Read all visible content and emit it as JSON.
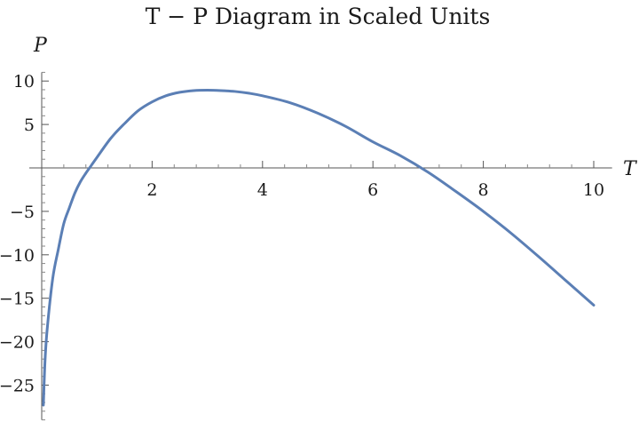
{
  "chart_data": {
    "type": "line",
    "title": "T − P Diagram in Scaled Units",
    "xlabel": "T",
    "ylabel": "P",
    "xlim": [
      0,
      10.3
    ],
    "ylim": [
      -29,
      11
    ],
    "grid": false,
    "x_ticks": [
      2,
      4,
      6,
      8,
      10
    ],
    "x_tick_labels": [
      "2",
      "4",
      "6",
      "8",
      "10"
    ],
    "y_ticks": [
      10,
      5,
      -5,
      -10,
      -15,
      -20,
      -25
    ],
    "y_tick_labels": [
      "10",
      "5",
      "−5",
      "−10",
      "−15",
      "−20",
      "−25"
    ],
    "series": [
      {
        "color": "#5b7fb5",
        "x": [
          0.03,
          0.06,
          0.1,
          0.2,
          0.3,
          0.4,
          0.5,
          0.6,
          0.7,
          0.8,
          0.9,
          1.0,
          1.25,
          1.5,
          1.75,
          2.0,
          2.25,
          2.5,
          2.75,
          3.0,
          3.25,
          3.5,
          3.75,
          4.0,
          4.5,
          5.0,
          5.5,
          6.0,
          6.5,
          7.0,
          7.5,
          8.0,
          8.5,
          9.0,
          9.5,
          10.0
        ],
        "y": [
          -27.3,
          -22.2,
          -18.5,
          -12.7,
          -9.4,
          -6.4,
          -4.6,
          -2.9,
          -1.6,
          -0.6,
          0.3,
          1.2,
          3.4,
          5.1,
          6.6,
          7.6,
          8.3,
          8.7,
          8.9,
          8.95,
          8.9,
          8.8,
          8.6,
          8.3,
          7.5,
          6.3,
          4.8,
          3.0,
          1.4,
          -0.5,
          -2.7,
          -5.0,
          -7.5,
          -10.2,
          -13.0,
          -15.8
        ]
      }
    ]
  }
}
